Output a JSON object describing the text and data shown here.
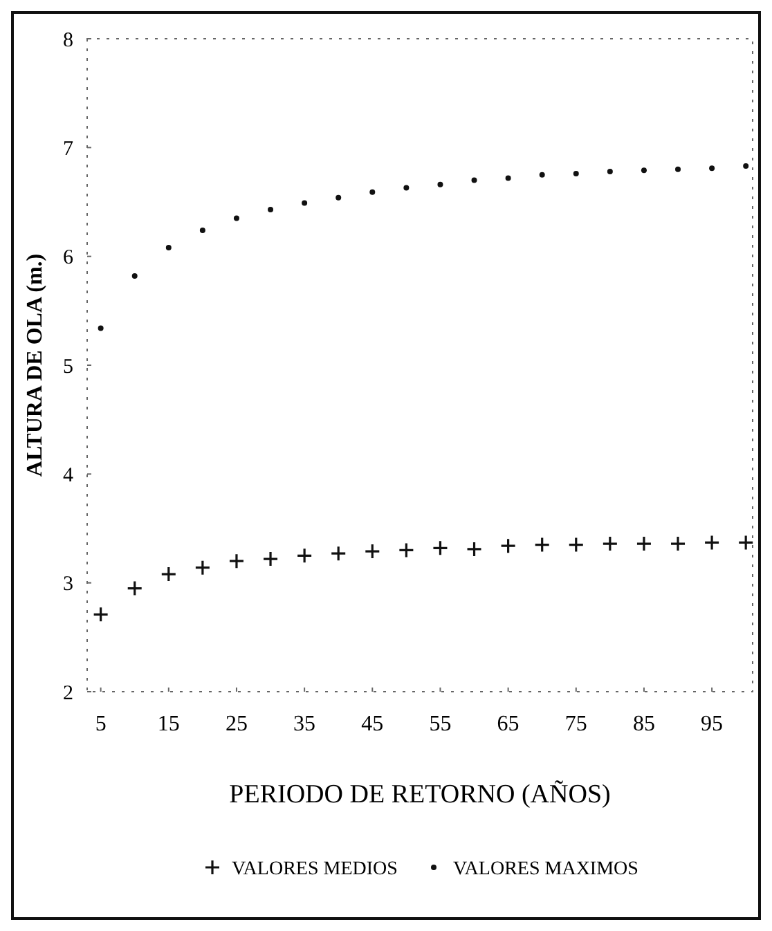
{
  "chart_data": {
    "type": "scatter",
    "xlabel": "PERIODO DE RETORNO (AÑOS)",
    "ylabel": "ALTURA DE OLA (m.)",
    "x": [
      5,
      10,
      15,
      20,
      25,
      30,
      35,
      40,
      45,
      50,
      55,
      60,
      65,
      70,
      75,
      80,
      85,
      90,
      95,
      100
    ],
    "series": [
      {
        "name": "VALORES MEDIOS",
        "color": "#111111",
        "marker": "cross",
        "values": [
          2.71,
          2.95,
          3.08,
          3.14,
          3.2,
          3.22,
          3.25,
          3.27,
          3.29,
          3.3,
          3.32,
          3.31,
          3.34,
          3.35,
          3.35,
          3.36,
          3.36,
          3.36,
          3.37,
          3.37
        ]
      },
      {
        "name": "VALORES MAXIMOS",
        "color": "#111111",
        "marker": "circle",
        "values": [
          5.34,
          5.82,
          6.08,
          6.24,
          6.35,
          6.43,
          6.49,
          6.54,
          6.59,
          6.63,
          6.66,
          6.7,
          6.72,
          6.75,
          6.76,
          6.78,
          6.79,
          6.8,
          6.81,
          6.83
        ]
      }
    ],
    "xlim": [
      3,
      101
    ],
    "xticks": [
      5,
      15,
      25,
      35,
      45,
      55,
      65,
      75,
      85,
      95
    ],
    "ylim": [
      2,
      8
    ],
    "yticks": [
      2,
      3,
      4,
      5,
      6,
      7,
      8
    ],
    "legend": "bottom",
    "grid": false
  }
}
